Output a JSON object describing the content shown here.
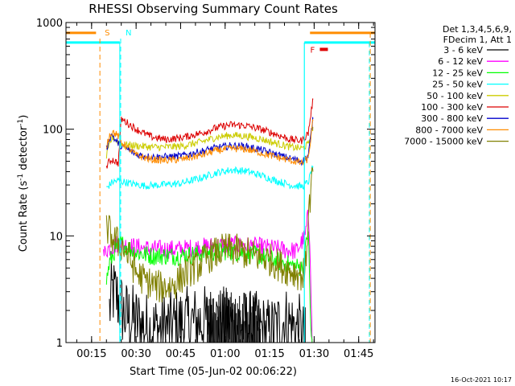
{
  "chart_data": {
    "type": "line",
    "title": "RHESSI Observing Summary Count Rates",
    "xlabel": "Start Time (05-Jun-02 00:06:22)",
    "ylabel_main": "Count Rate (s",
    "ylabel_sup1": "-1",
    "ylabel_mid": " detector",
    "ylabel_sup2": "-1",
    "ylabel_end": ")",
    "yscale": "log",
    "ylim": [
      1,
      1000
    ],
    "xlim_minutes": [
      6.37,
      110.5
    ],
    "x_ticks": [
      {
        "label": "00:15",
        "minutes": 15
      },
      {
        "label": "00:30",
        "minutes": 30
      },
      {
        "label": "00:45",
        "minutes": 45
      },
      {
        "label": "01:00",
        "minutes": 60
      },
      {
        "label": "01:15",
        "minutes": 75
      },
      {
        "label": "01:30",
        "minutes": 90
      },
      {
        "label": "01:45",
        "minutes": 105
      }
    ],
    "y_ticks": [
      {
        "label": "1",
        "value": 1
      },
      {
        "label": "10",
        "value": 10
      },
      {
        "label": "100",
        "value": 100
      },
      {
        "label": "1000",
        "value": 1000
      }
    ],
    "legend": {
      "position": "right",
      "header1": "Det 1,3,4,5,6,9,",
      "header2": "FDecim 1, Att 1"
    },
    "markers": [
      {
        "label": "S",
        "minutes": 17.8,
        "color": "#ff8c00",
        "style": "dashed"
      },
      {
        "label": "N",
        "minutes": 24.8,
        "color": "#00ffff",
        "style": "dashed"
      },
      {
        "label": "F",
        "minutes": 93.0,
        "color": "#dd0000",
        "style": "bar"
      }
    ],
    "state_lines": [
      {
        "name": "saa",
        "color": "#00ffff",
        "start_minutes": 6.37,
        "end_minutes": 24.5,
        "level": 650
      },
      {
        "name": "night",
        "color": "#ff8c00",
        "start_minutes": 6.37,
        "end_minutes": 16.5,
        "level": 800
      },
      {
        "name": "saa2",
        "color": "#00ffff",
        "start_minutes": 86.7,
        "end_minutes": 110.5,
        "level": 650
      },
      {
        "name": "night2",
        "color": "#ff8c00",
        "start_minutes": 88.6,
        "end_minutes": 110.5,
        "level": 800
      }
    ],
    "series": [
      {
        "name": "3 - 6 keV",
        "color": "#000000",
        "points": [
          [
            21,
            2.0
          ],
          [
            22,
            3.0
          ],
          [
            24,
            2.5
          ],
          [
            26,
            1.8
          ],
          [
            35,
            1.3
          ],
          [
            45,
            1.5
          ],
          [
            55,
            1.6
          ],
          [
            62,
            1.5
          ],
          [
            70,
            1.4
          ],
          [
            75,
            1.2
          ],
          [
            80,
            1.6
          ],
          [
            85,
            1.3
          ],
          [
            87,
            1.0
          ]
        ]
      },
      {
        "name": "6 - 12 keV",
        "color": "#ff00ff",
        "points": [
          [
            19,
            6.5
          ],
          [
            20,
            7.5
          ],
          [
            22,
            8.0
          ],
          [
            24,
            8.5
          ],
          [
            28,
            8.0
          ],
          [
            35,
            7.5
          ],
          [
            45,
            7.5
          ],
          [
            55,
            8.0
          ],
          [
            62,
            8.2
          ],
          [
            70,
            8.0
          ],
          [
            78,
            7.5
          ],
          [
            84,
            7.2
          ],
          [
            87,
            10.0
          ],
          [
            88,
            16.0
          ],
          [
            88.6,
            9.0
          ],
          [
            89.3,
            1.0
          ]
        ]
      },
      {
        "name": "12 - 25 keV",
        "color": "#00ff00",
        "points": [
          [
            20,
            3.8
          ],
          [
            21,
            5.5
          ],
          [
            23,
            7.5
          ],
          [
            25,
            8.5
          ],
          [
            30,
            7.0
          ],
          [
            35,
            6.5
          ],
          [
            45,
            6.5
          ],
          [
            55,
            7.0
          ],
          [
            60,
            7.2
          ],
          [
            65,
            7.0
          ],
          [
            72,
            6.5
          ],
          [
            80,
            5.5
          ],
          [
            86,
            5.0
          ],
          [
            87,
            7.0
          ],
          [
            88,
            12.0
          ],
          [
            88.8,
            1.5
          ],
          [
            89.3,
            1.0
          ]
        ]
      },
      {
        "name": "25 - 50 keV",
        "color": "#00ffff",
        "points": [
          [
            20,
            28
          ],
          [
            22,
            32
          ],
          [
            24,
            33
          ],
          [
            28,
            31
          ],
          [
            33,
            29.5
          ],
          [
            38,
            30
          ],
          [
            45,
            31
          ],
          [
            52,
            35
          ],
          [
            57,
            39
          ],
          [
            62,
            41.5
          ],
          [
            67,
            40.5
          ],
          [
            72,
            37
          ],
          [
            77,
            33
          ],
          [
            82,
            30
          ],
          [
            86,
            29
          ],
          [
            88,
            32
          ],
          [
            89.6,
            45
          ]
        ]
      },
      {
        "name": "50 - 100 keV",
        "color": "#cccc00",
        "points": [
          [
            20,
            55
          ],
          [
            21,
            70
          ],
          [
            22,
            85
          ],
          [
            23,
            80
          ],
          [
            24,
            76
          ],
          [
            25,
            72
          ],
          [
            30,
            70
          ],
          [
            35,
            68
          ],
          [
            40,
            68
          ],
          [
            45,
            69
          ],
          [
            52,
            76
          ],
          [
            57,
            84
          ],
          [
            62,
            88
          ],
          [
            67,
            86
          ],
          [
            72,
            81
          ],
          [
            77,
            74
          ],
          [
            82,
            68
          ],
          [
            86,
            66
          ],
          [
            88,
            72
          ],
          [
            89.6,
            105
          ]
        ]
      },
      {
        "name": "100 - 300 keV",
        "color": "#dd0000",
        "points": [
          [
            20,
            44
          ],
          [
            21,
            50
          ],
          [
            22,
            52
          ],
          [
            24,
            48
          ],
          [
            25,
            125
          ],
          [
            27,
            115
          ],
          [
            30,
            100
          ],
          [
            35,
            85
          ],
          [
            40,
            80
          ],
          [
            45,
            83
          ],
          [
            52,
            92
          ],
          [
            57,
            103
          ],
          [
            62,
            110
          ],
          [
            67,
            108
          ],
          [
            72,
            100
          ],
          [
            77,
            90
          ],
          [
            82,
            80
          ],
          [
            86,
            78
          ],
          [
            88,
            92
          ],
          [
            89.6,
            190
          ]
        ]
      },
      {
        "name": "300 - 800 keV",
        "color": "#0000cc",
        "points": [
          [
            20,
            65
          ],
          [
            21,
            82
          ],
          [
            22,
            90
          ],
          [
            23,
            78
          ],
          [
            24,
            74
          ],
          [
            25,
            70
          ],
          [
            30,
            58
          ],
          [
            35,
            55
          ],
          [
            40,
            55
          ],
          [
            45,
            56
          ],
          [
            52,
            62
          ],
          [
            57,
            67
          ],
          [
            62,
            70
          ],
          [
            67,
            69
          ],
          [
            72,
            64
          ],
          [
            77,
            58
          ],
          [
            82,
            53
          ],
          [
            86,
            50
          ],
          [
            88,
            56
          ],
          [
            89.6,
            125
          ]
        ]
      },
      {
        "name": "800 - 7000 keV",
        "color": "#ff8c00",
        "points": [
          [
            20,
            70
          ],
          [
            21,
            88
          ],
          [
            22,
            95
          ],
          [
            24,
            86
          ],
          [
            25,
            76
          ],
          [
            30,
            57
          ],
          [
            35,
            52
          ],
          [
            40,
            51
          ],
          [
            45,
            52
          ],
          [
            52,
            57
          ],
          [
            57,
            63
          ],
          [
            62,
            66
          ],
          [
            67,
            65
          ],
          [
            72,
            60
          ],
          [
            77,
            55
          ],
          [
            82,
            51
          ],
          [
            86,
            48
          ],
          [
            88,
            53
          ],
          [
            89.6,
            120
          ]
        ]
      },
      {
        "name": "7000 - 15000 keV",
        "color": "#808000",
        "points": [
          [
            20,
            12
          ],
          [
            21,
            11
          ],
          [
            22,
            9.5
          ],
          [
            24,
            8.5
          ],
          [
            26,
            7.5
          ],
          [
            28,
            6.0
          ],
          [
            30,
            4.5
          ],
          [
            33,
            3.8
          ],
          [
            38,
            3.3
          ],
          [
            42,
            3.4
          ],
          [
            45,
            4.0
          ],
          [
            48,
            4.8
          ],
          [
            50,
            5.0
          ],
          [
            55,
            6.5
          ],
          [
            60,
            7.5
          ],
          [
            65,
            7.2
          ],
          [
            70,
            6.5
          ],
          [
            75,
            6.0
          ],
          [
            80,
            5.0
          ],
          [
            86,
            4.3
          ],
          [
            87,
            4.5
          ],
          [
            88,
            15
          ],
          [
            89.6,
            40
          ]
        ]
      }
    ]
  },
  "footer": {
    "timestamp": "16-Oct-2021 10:17"
  }
}
